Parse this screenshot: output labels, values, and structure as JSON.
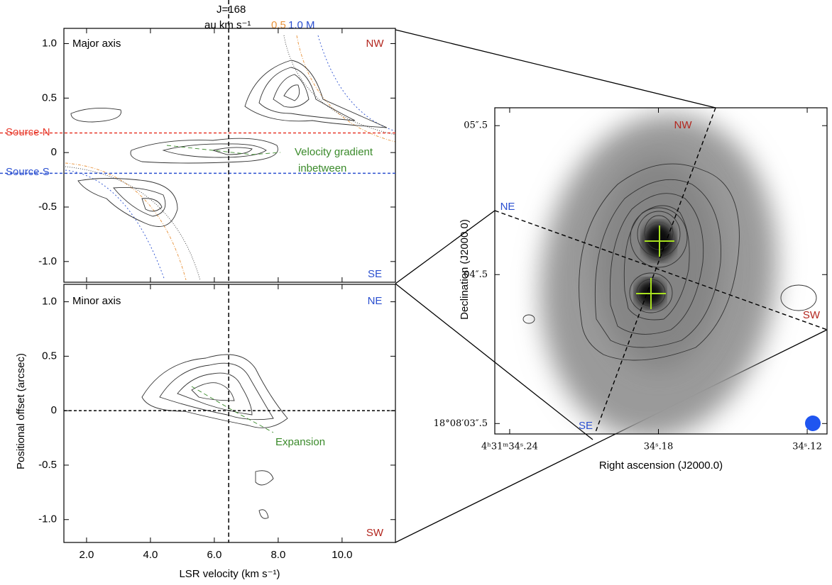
{
  "header": {
    "jlabel": "J=168",
    "unit": "au km s⁻¹",
    "curve_a": {
      "text": "0.5",
      "color": "#e8923a"
    },
    "curve_b": {
      "text": "1.0 M",
      "color": "#2a4fd0"
    }
  },
  "chart_data": [
    {
      "type": "contour",
      "annotations": [
        {
          "text": "Major axis",
          "color": "#000000"
        },
        {
          "text": "NW",
          "color": "#b3261e"
        },
        {
          "text": "SE",
          "color": "#2a4fd0"
        },
        {
          "text": "Source N",
          "color": "#e8392b"
        },
        {
          "text": "Source S",
          "color": "#2a4fd0"
        },
        {
          "text": "Velocity gradient",
          "color": "#3a8a2a"
        },
        {
          "text": "inbetween",
          "color": "#3a8a2a"
        }
      ],
      "xlim": [
        1.29,
        11.67
      ],
      "ylim": [
        -1.19,
        1.14
      ],
      "xticks": [
        {
          "value": 2,
          "label": "2.0"
        },
        {
          "value": 4,
          "label": "4.0"
        },
        {
          "value": 6,
          "label": "6.0"
        },
        {
          "value": 8,
          "label": "8.0"
        },
        {
          "value": 10,
          "label": "10.0"
        }
      ],
      "yticks": [
        {
          "value": 1,
          "label": "1.0"
        },
        0.5,
        0,
        -0.5,
        {
          "value": -1,
          "label": "-1.0"
        }
      ],
      "hlines": [
        {
          "value": 0.18,
          "color": "#e8392b"
        },
        {
          "value": -0.19,
          "color": "#2a4fd0"
        }
      ],
      "vline": 6.45
    },
    {
      "type": "contour",
      "annotations": [
        {
          "text": "Minor axis",
          "color": "#000000"
        },
        {
          "text": "NE",
          "color": "#2a4fd0"
        },
        {
          "text": "SW",
          "color": "#b3261e"
        },
        {
          "text": "Expansion",
          "color": "#3a8a2a"
        }
      ],
      "xlabel": "LSR velocity (km s⁻¹)",
      "ylabel": "Positional offset (arcsec)",
      "xlim": [
        1.29,
        11.67
      ],
      "ylim": [
        -1.21,
        1.16
      ],
      "xticks": [
        {
          "value": 2,
          "label": "2.0"
        },
        {
          "value": 4,
          "label": "4.0"
        },
        {
          "value": 6,
          "label": "6.0"
        },
        {
          "value": 8,
          "label": "8.0"
        },
        {
          "value": 10,
          "label": "10.0"
        }
      ],
      "yticks": [
        {
          "value": 1,
          "label": "1.0"
        },
        0.5,
        0,
        -0.5,
        {
          "value": -1,
          "label": "-1.0"
        }
      ],
      "hlines": [
        {
          "value": 0,
          "color": "#000000"
        }
      ],
      "vline": 6.45
    },
    {
      "type": "image",
      "annotations": [
        {
          "text": "NW",
          "color": "#b3261e"
        },
        {
          "text": "NE",
          "color": "#2a4fd0"
        },
        {
          "text": "SW",
          "color": "#b3261e"
        },
        {
          "text": "SE",
          "color": "#2a4fd0"
        }
      ],
      "xlabel": "Right ascension (J2000.0)",
      "ylabel": "Declination (J2000.0)",
      "xlim": [
        34.246,
        34.112
      ],
      "ylim": [
        3.43,
        5.62
      ],
      "xticks": [
        {
          "value": 34.24,
          "label": "4ʰ31ᵐ34ˢ.24"
        },
        {
          "value": 34.18,
          "label": "34ˢ.18"
        },
        {
          "value": 34.12,
          "label": "34ˢ.12"
        }
      ],
      "yticks": [
        {
          "value": 5.5,
          "label": "05″.5"
        },
        {
          "value": 4.5,
          "label": "04″.5"
        },
        {
          "value": 3.5,
          "label": "18°08′03″.5"
        }
      ]
    }
  ]
}
